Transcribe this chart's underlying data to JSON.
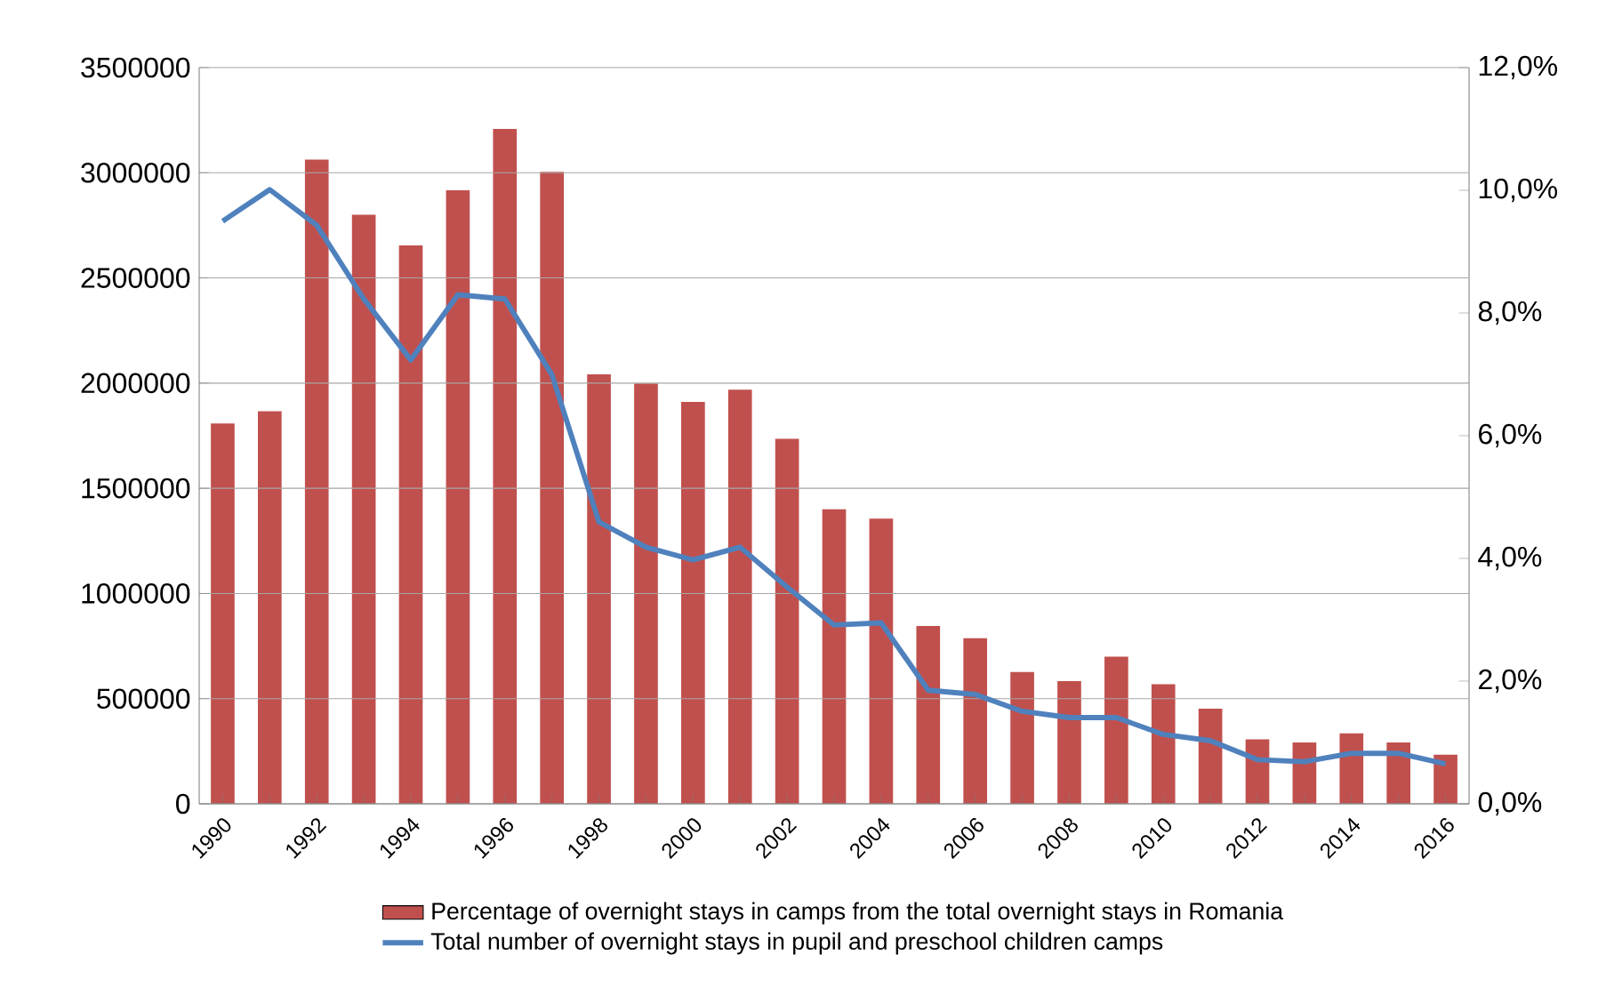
{
  "chart_data": {
    "type": "bar",
    "categories": [
      "1990",
      null,
      "1992",
      null,
      "1994",
      null,
      "1996",
      null,
      "1998",
      null,
      "2000",
      null,
      "2002",
      null,
      "2004",
      null,
      "2006",
      null,
      "2008",
      null,
      "2010",
      null,
      "2012",
      null,
      "2014",
      null,
      "2016"
    ],
    "series": [
      {
        "name": "Percentage of overnight stays in camps from the total overnight stays in Romania",
        "axis": "y2",
        "color": "#c0504d",
        "values": [
          6.2,
          6.4,
          10.5,
          9.6,
          9.1,
          10.0,
          11.0,
          10.3,
          7.0,
          6.85,
          6.55,
          6.75,
          5.95,
          4.8,
          4.65,
          2.9,
          2.7,
          2.15,
          2.0,
          2.4,
          1.95,
          1.55,
          1.05,
          1.0,
          1.15,
          1.0,
          0.8
        ]
      },
      {
        "name": "Total number of overnight stays in pupil and preschool children camps",
        "type": "line",
        "axis": "y",
        "color": "#4f81bd",
        "values": [
          2770000,
          2920000,
          2750000,
          2400000,
          2110000,
          2420000,
          2400000,
          2040000,
          1340000,
          1220000,
          1160000,
          1220000,
          1030000,
          850000,
          860000,
          540000,
          520000,
          440000,
          410000,
          410000,
          330000,
          300000,
          210000,
          200000,
          240000,
          240000,
          190000
        ]
      }
    ],
    "ylim": [
      0,
      3500000
    ],
    "yticks": [
      0,
      500000,
      1000000,
      1500000,
      2000000,
      2500000,
      3000000,
      3500000
    ],
    "y2lim": [
      0,
      12
    ],
    "y2ticks": [
      {
        "value": 0,
        "label": "0,0%"
      },
      {
        "value": 2,
        "label": "2,0%"
      },
      {
        "value": 4,
        "label": "4,0%"
      },
      {
        "value": 6,
        "label": "6,0%"
      },
      {
        "value": 8,
        "label": "8,0%"
      },
      {
        "value": 10,
        "label": "10,0%"
      },
      {
        "value": 12,
        "label": "12,0%"
      }
    ],
    "grid": "y",
    "legend": "bottom",
    "marker": "none"
  }
}
